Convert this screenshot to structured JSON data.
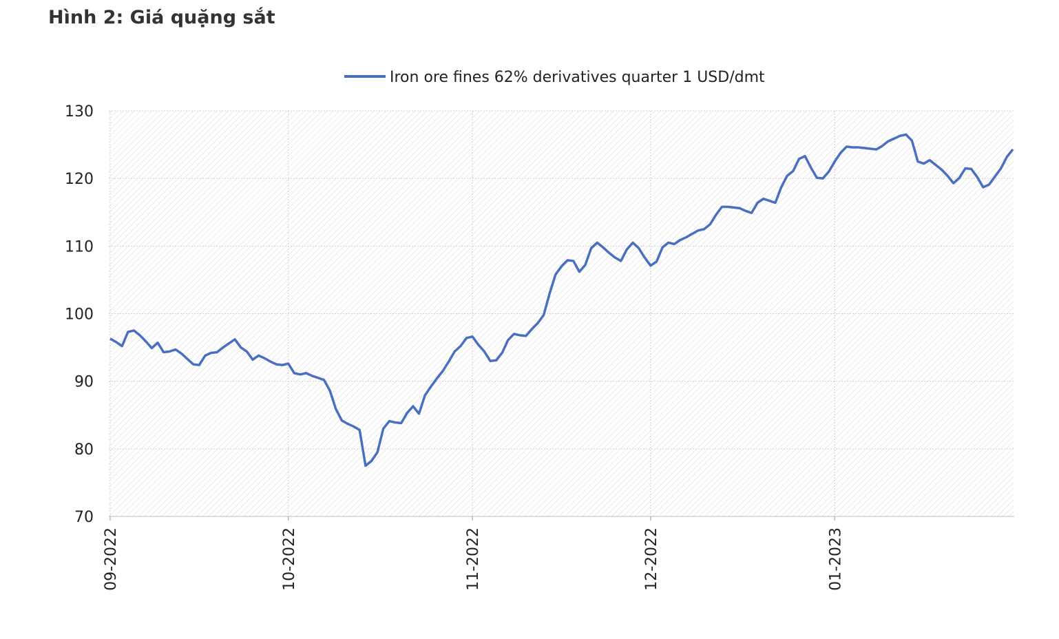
{
  "chart_data": {
    "type": "line",
    "title": "Hình 2: Giá quặng sắt",
    "categories": [
      "09-2022",
      null,
      null,
      null,
      null,
      null,
      null,
      null,
      null,
      null,
      null,
      null,
      null,
      null,
      null,
      null,
      null,
      null,
      null,
      null,
      null,
      null,
      null,
      null,
      null,
      null,
      null,
      null,
      null,
      null,
      "10-2022",
      null,
      null,
      null,
      null,
      null,
      null,
      null,
      null,
      null,
      null,
      null,
      null,
      null,
      null,
      null,
      null,
      null,
      null,
      null,
      null,
      null,
      null,
      null,
      null,
      null,
      null,
      null,
      null,
      null,
      null,
      "11-2022",
      null,
      null,
      null,
      null,
      null,
      null,
      null,
      null,
      null,
      null,
      null,
      null,
      null,
      null,
      null,
      null,
      null,
      null,
      null,
      null,
      null,
      null,
      null,
      null,
      null,
      null,
      null,
      null,
      null,
      "12-2022",
      null,
      null,
      null,
      null,
      null,
      null,
      null,
      null,
      null,
      null,
      null,
      null,
      null,
      null,
      null,
      null,
      null,
      null,
      null,
      null,
      null,
      null,
      null,
      null,
      null,
      null,
      null,
      null,
      null,
      null,
      "01-2023",
      null,
      null,
      null,
      null,
      null,
      null,
      null,
      null,
      null,
      null,
      null,
      null,
      null,
      null,
      null,
      null,
      null,
      null,
      null,
      null,
      null,
      null,
      null,
      null,
      null,
      null,
      null,
      null,
      null,
      null
    ],
    "series": [
      {
        "name": "Iron ore fines 62% derivatives quarter 1 USD/dmt",
        "color": "#4a6fc0",
        "values": [
          96.3,
          95.8,
          95.2,
          97.3,
          97.5,
          96.8,
          95.9,
          94.9,
          95.7,
          94.3,
          94.4,
          94.7,
          94.1,
          93.3,
          92.5,
          92.4,
          93.8,
          94.2,
          94.3,
          95.0,
          95.6,
          96.2,
          95.0,
          94.4,
          93.2,
          93.8,
          93.4,
          92.9,
          92.5,
          92.4,
          92.6,
          91.2,
          91.0,
          91.2,
          90.8,
          90.5,
          90.2,
          88.6,
          85.9,
          84.2,
          83.7,
          83.3,
          82.8,
          77.5,
          78.2,
          79.5,
          83.0,
          84.1,
          83.9,
          83.8,
          85.3,
          86.3,
          85.2,
          87.9,
          89.2,
          90.4,
          91.5,
          92.9,
          94.4,
          95.2,
          96.4,
          96.6,
          95.4,
          94.4,
          93.0,
          93.1,
          94.2,
          96.1,
          97.0,
          96.8,
          96.7,
          97.7,
          98.6,
          99.8,
          103.0,
          105.8,
          107.0,
          107.9,
          107.8,
          106.2,
          107.2,
          109.7,
          110.5,
          109.8,
          109.0,
          108.3,
          107.8,
          109.5,
          110.5,
          109.7,
          108.3,
          107.1,
          107.7,
          109.8,
          110.5,
          110.3,
          110.9,
          111.3,
          111.8,
          112.3,
          112.5,
          113.2,
          114.6,
          115.8,
          115.8,
          115.7,
          115.6,
          115.2,
          114.9,
          116.4,
          117.0,
          116.7,
          116.4,
          118.7,
          120.4,
          121.1,
          122.9,
          123.3,
          121.6,
          120.1,
          120.0,
          121.0,
          122.5,
          123.8,
          124.7,
          124.6,
          124.6,
          124.5,
          124.4,
          124.3,
          124.8,
          125.5,
          125.9,
          126.3,
          126.5,
          125.6,
          122.5,
          122.2,
          122.7,
          122.0,
          121.3,
          120.4,
          119.3,
          120.1,
          121.5,
          121.4,
          120.2,
          118.7,
          119.1,
          120.3,
          121.5,
          123.2,
          124.3
        ]
      }
    ],
    "ylim": [
      70,
      130
    ],
    "yticks": [
      70,
      80,
      90,
      100,
      110,
      120,
      130
    ],
    "grid": true,
    "legend": "top"
  }
}
